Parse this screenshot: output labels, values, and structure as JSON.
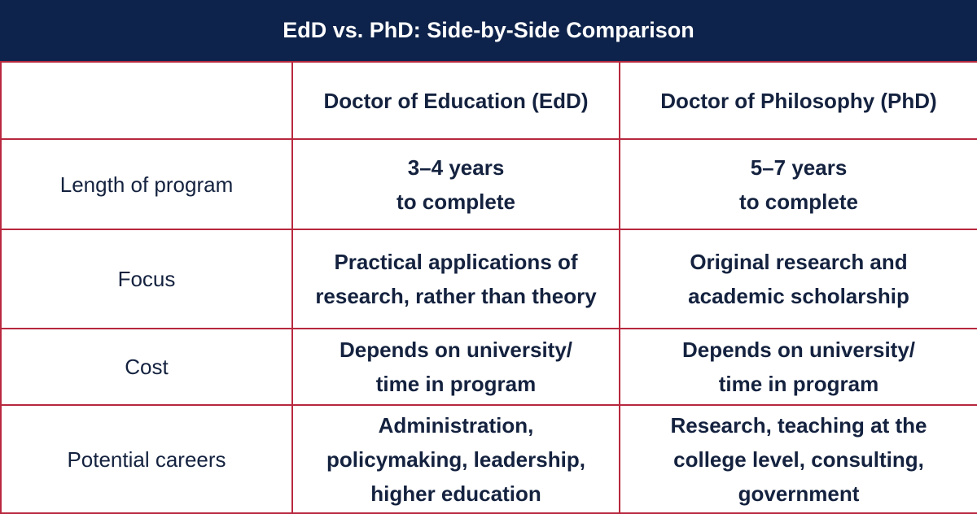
{
  "title": "EdD vs. PhD: Side-by-Side Comparison",
  "colors": {
    "banner": "#0e234b",
    "border": "#b8283e",
    "text": "#14223f"
  },
  "columns": [
    "",
    "Doctor of Education (EdD)",
    "Doctor of Philosophy (PhD)"
  ],
  "rows": [
    {
      "label": "Length of program",
      "edd": "3–4 years\nto complete",
      "phd": "5–7 years\nto complete"
    },
    {
      "label": "Focus",
      "edd": "Practical applications of\nresearch, rather than theory",
      "phd": "Original research and\nacademic scholarship"
    },
    {
      "label": "Cost",
      "edd": "Depends on university/\ntime in program",
      "phd": "Depends on university/\ntime in program"
    },
    {
      "label": "Potential careers",
      "edd": "Administration,\npolicymaking, leadership,\nhigher education",
      "phd": "Research, teaching at the\ncollege level, consulting,\ngovernment"
    }
  ]
}
